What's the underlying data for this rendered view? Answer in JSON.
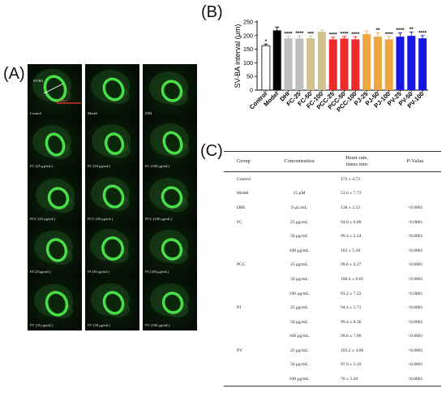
{
  "panel_labels": {
    "a": "(A)",
    "b": "(B)",
    "c": "(C)"
  },
  "panel_a": {
    "cells": [
      {
        "caption": "Control",
        "tag": "SV-BA",
        "scale": "100μm"
      },
      {
        "caption": "Model"
      },
      {
        "caption": "DHI"
      },
      {
        "caption": "FC (25 μg/mL)"
      },
      {
        "caption": "FC (50 μg/mL)"
      },
      {
        "caption": "FC (100 μg/mL)"
      },
      {
        "caption": "PCC (25 μg/mL)"
      },
      {
        "caption": "PCC (50 μg/mL)"
      },
      {
        "caption": "PCC (100 μg/mL)"
      },
      {
        "caption": "PJ (25μg/mL)"
      },
      {
        "caption": "PJ (50 μg/mL)"
      },
      {
        "caption": "PJ (100 μg/mL)"
      },
      {
        "caption": "PV (25 μg/mL)"
      },
      {
        "caption": "PV (50 μg/mL)"
      },
      {
        "caption": "PV (100 μg/mL)"
      }
    ]
  },
  "chart_data": {
    "type": "bar",
    "ylabel": "SV-BA interval (μm)",
    "ylim": [
      0,
      250
    ],
    "yticks": [
      0,
      50,
      100,
      150,
      200,
      250
    ],
    "categories": [
      "Control",
      "Model",
      "DHI",
      "FC-25",
      "FC-50",
      "FC-100",
      "PCC-25",
      "PCC-50",
      "PCC-100",
      "PJ-25",
      "PJ-50",
      "PJ-100",
      "PV-25",
      "PV-50",
      "PV-100"
    ],
    "values": [
      163,
      219,
      190,
      189,
      190,
      214,
      186,
      189,
      186,
      205,
      196,
      186,
      196,
      199,
      190
    ],
    "errors": [
      6,
      12,
      8,
      10,
      8,
      6,
      8,
      8,
      10,
      12,
      14,
      10,
      14,
      14,
      10
    ],
    "annotations": [
      "",
      "",
      "****",
      "****",
      "***",
      "",
      "****",
      "****",
      "****",
      "",
      "**",
      "****",
      "****",
      "**",
      "****"
    ],
    "control_marker": "*",
    "colors": [
      "#ffffff",
      "#000000",
      "#bdbdbd",
      "#bdbdbd",
      "#d2c28f",
      "#d2c28f",
      "#ee2a2a",
      "#ee2a2a",
      "#ee2a2a",
      "#f0a640",
      "#f0a640",
      "#f0a640",
      "#1515e6",
      "#1515e6",
      "#1515e6"
    ],
    "grid": false
  },
  "panel_c": {
    "headers": {
      "group": "Group",
      "concentration": "Concentration",
      "heart_rate_line1": "Heart rate,",
      "heart_rate_line2": "times min",
      "pvalue": "P-Value"
    },
    "rows": [
      {
        "group": "Control",
        "conc": "",
        "hr": "172 ± 4.73",
        "p": ""
      },
      {
        "group": "Model",
        "conc": "15 μM",
        "hr": "53.6 ± 7.73",
        "p": ""
      },
      {
        "group": "DHI",
        "conc": "9 μL/mL",
        "hr": "138 ± 2.53",
        "p": "<0.0001"
      },
      {
        "group": "FC",
        "conc": "25 μg/mL",
        "hr": "94.8 ± 6.88",
        "p": "<0.0001"
      },
      {
        "group": "",
        "conc": "50 μg/mL",
        "hr": "99.4 ± 2.24",
        "p": "<0.0001"
      },
      {
        "group": "",
        "conc": "100 μg/mL",
        "hr": "103 ± 5.18",
        "p": "<0.0001"
      },
      {
        "group": "PCC",
        "conc": "25 μg/mL",
        "hr": "99.6 ± 4.27",
        "p": "<0.0001"
      },
      {
        "group": "",
        "conc": "50 μg/mL",
        "hr": "100.4 ± 6.65",
        "p": "<0.0001"
      },
      {
        "group": "",
        "conc": "100 μg/mL",
        "hr": "93.2 ± 7.22",
        "p": "<0.0001"
      },
      {
        "group": "PJ",
        "conc": "25 μg/mL",
        "hr": "94.4 ± 5.71",
        "p": "<0.0001"
      },
      {
        "group": "",
        "conc": "50 μg/mL",
        "hr": "99.4 ± 8.36",
        "p": "<0.0001"
      },
      {
        "group": "",
        "conc": "100 μg/mL",
        "hr": "99.6 ± 7.66",
        "p": "<0.0001"
      },
      {
        "group": "PV",
        "conc": "25 μg/mL",
        "hr": "103.2 ± 4.66",
        "p": "<0.0001"
      },
      {
        "group": "",
        "conc": "50 μg/mL",
        "hr": "97.6 ± 5.16",
        "p": "<0.0001"
      },
      {
        "group": "",
        "conc": "100 μg/mL",
        "hr": "70 ± 5.20",
        "p": "<0.0001"
      }
    ]
  }
}
